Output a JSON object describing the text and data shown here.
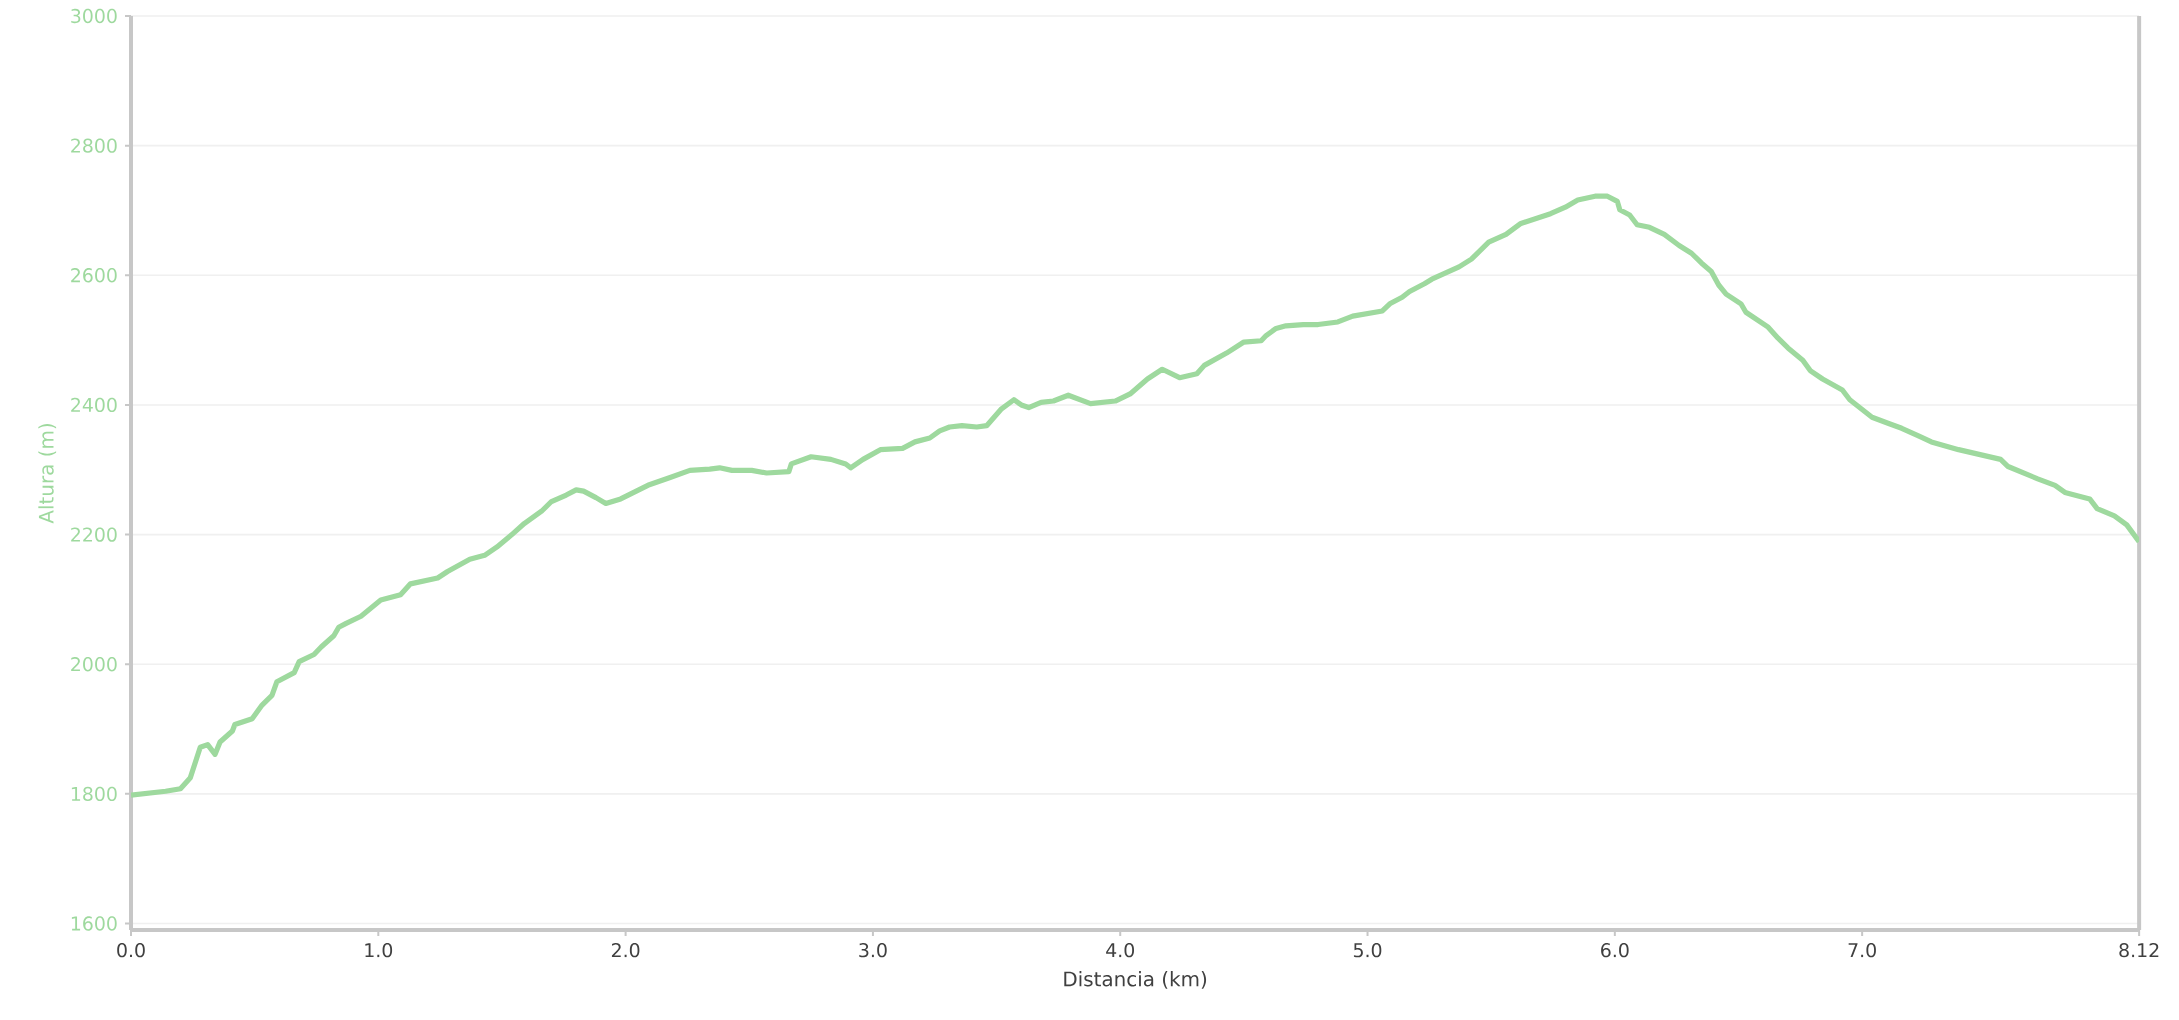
{
  "chart_data": {
    "type": "line",
    "xlabel": "Distancia (km)",
    "ylabel": "Altura (m)",
    "xlim": [
      0,
      8.12
    ],
    "ylim": [
      1590,
      3000
    ],
    "xticks": [
      {
        "value": 0,
        "label": "0.0"
      },
      {
        "value": 1,
        "label": "1.0"
      },
      {
        "value": 2,
        "label": "2.0"
      },
      {
        "value": 3,
        "label": "3.0"
      },
      {
        "value": 4,
        "label": "4.0"
      },
      {
        "value": 5,
        "label": "5.0"
      },
      {
        "value": 6,
        "label": "6.0"
      },
      {
        "value": 7,
        "label": "7.0"
      },
      8.12
    ],
    "yticks": [
      1600,
      1800,
      2000,
      2200,
      2400,
      2600,
      2800,
      3000
    ],
    "grid": "y",
    "x": [
      0,
      0.14,
      0.2,
      0.24,
      0.28,
      0.31,
      0.34,
      0.36,
      0.41,
      0.42,
      0.49,
      0.53,
      0.57,
      0.59,
      0.66,
      0.68,
      0.74,
      0.77,
      0.82,
      0.84,
      0.87,
      0.93,
      1.01,
      1.09,
      1.13,
      1.24,
      1.28,
      1.37,
      1.43,
      1.48,
      1.54,
      1.59,
      1.66,
      1.7,
      1.76,
      1.8,
      1.83,
      1.88,
      1.92,
      1.98,
      2.09,
      2.18,
      2.26,
      2.34,
      2.38,
      2.43,
      2.51,
      2.57,
      2.66,
      2.67,
      2.75,
      2.83,
      2.89,
      2.91,
      2.96,
      3.03,
      3.12,
      3.17,
      3.23,
      3.27,
      3.31,
      3.36,
      3.42,
      3.46,
      3.52,
      3.57,
      3.6,
      3.63,
      3.68,
      3.73,
      3.79,
      3.88,
      3.93,
      3.98,
      4.04,
      4.11,
      4.17,
      4.24,
      4.31,
      4.34,
      4.43,
      4.5,
      4.57,
      4.59,
      4.63,
      4.67,
      4.74,
      4.8,
      4.88,
      4.94,
      5.06,
      5.09,
      5.14,
      5.17,
      5.23,
      5.26,
      5.37,
      5.42,
      5.45,
      5.49,
      5.56,
      5.62,
      5.74,
      5.8,
      5.85,
      5.92,
      5.97,
      6.01,
      6.02,
      6.06,
      6.09,
      6.14,
      6.2,
      6.26,
      6.31,
      6.35,
      6.39,
      6.42,
      6.45,
      6.51,
      6.53,
      6.62,
      6.66,
      6.7,
      6.76,
      6.79,
      6.84,
      6.92,
      6.95,
      7.04,
      7.11,
      7.16,
      7.23,
      7.28,
      7.39,
      7.56,
      7.59,
      7.71,
      7.78,
      7.82,
      7.92,
      7.95,
      8.02,
      8.07,
      8.12
    ],
    "series": [
      {
        "color": "#9ed99e",
        "values": [
          1798,
          1804,
          1808,
          1825,
          1872,
          1876,
          1861,
          1880,
          1897,
          1907,
          1916,
          1937,
          1952,
          1973,
          1987,
          2004,
          2015,
          2027,
          2044,
          2057,
          2063,
          2074,
          2099,
          2107,
          2124,
          2133,
          2143,
          2162,
          2168,
          2181,
          2200,
          2217,
          2236,
          2251,
          2261,
          2269,
          2267,
          2257,
          2248,
          2255,
          2276,
          2288,
          2299,
          2301,
          2303,
          2299,
          2299,
          2295,
          2297,
          2309,
          2320,
          2316,
          2309,
          2303,
          2316,
          2331,
          2333,
          2343,
          2349,
          2360,
          2366,
          2368,
          2366,
          2368,
          2394,
          2408,
          2400,
          2396,
          2404,
          2406,
          2415,
          2402,
          2404,
          2406,
          2417,
          2440,
          2455,
          2442,
          2448,
          2461,
          2480,
          2497,
          2499,
          2507,
          2518,
          2522,
          2524,
          2524,
          2528,
          2537,
          2545,
          2556,
          2566,
          2575,
          2587,
          2594,
          2613,
          2625,
          2636,
          2651,
          2663,
          2680,
          2695,
          2705,
          2716,
          2722,
          2722,
          2714,
          2701,
          2693,
          2678,
          2674,
          2663,
          2646,
          2634,
          2619,
          2606,
          2585,
          2571,
          2556,
          2543,
          2520,
          2503,
          2488,
          2469,
          2453,
          2440,
          2423,
          2408,
          2381,
          2371,
          2364,
          2352,
          2343,
          2331,
          2316,
          2305,
          2286,
          2276,
          2265,
          2255,
          2240,
          2229,
          2215,
          2189
        ]
      }
    ]
  }
}
